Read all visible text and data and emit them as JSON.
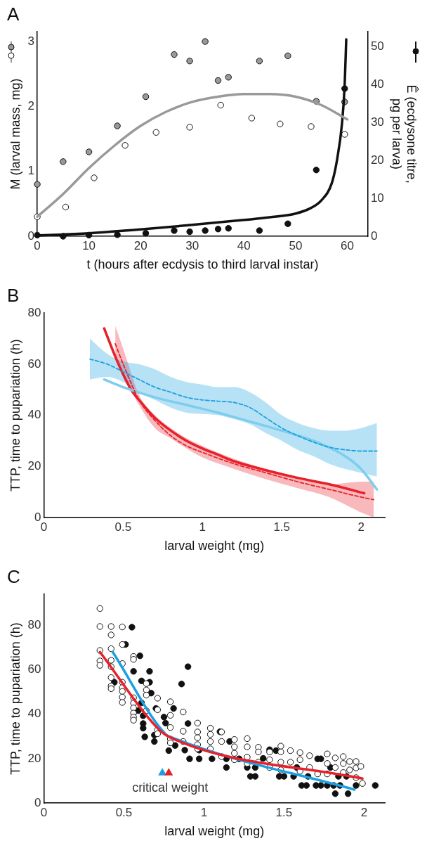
{
  "chart_data": [
    {
      "type": "scatter",
      "title": "A",
      "xlabel": "t (hours after ecdysis to third larval instar)",
      "ylabel": "M (larval mass, mg)",
      "y2label": "Ê (ecdysone titre,\npg per larva)",
      "marker": "circle",
      "xlim": [
        0,
        64
      ],
      "xticks": [
        0,
        10,
        20,
        30,
        40,
        50,
        60
      ],
      "ylim": [
        0,
        3.15
      ],
      "yticks": [
        0,
        1,
        2,
        3
      ],
      "y2lim": [
        0,
        54
      ],
      "y2ticks": [
        0,
        10,
        20,
        30,
        40,
        50
      ],
      "series": [
        {
          "type": "line",
          "color": "#999999",
          "marker": "none",
          "x": [
            0,
            5,
            10,
            15,
            20,
            25,
            30,
            35,
            40,
            45,
            50,
            55,
            60
          ],
          "values": [
            0.3,
            0.65,
            1.05,
            1.4,
            1.7,
            1.92,
            2.07,
            2.15,
            2.19,
            2.19,
            2.15,
            2.02,
            1.8
          ]
        },
        {
          "type": "line",
          "axis": "y2",
          "color": "#111111",
          "marker": "none",
          "x": [
            0,
            10,
            20,
            30,
            40,
            45,
            50,
            53,
            55,
            57,
            58,
            59,
            59.5,
            59.8
          ],
          "values": [
            0.2,
            0.8,
            1.8,
            3,
            4.3,
            5,
            6,
            7.5,
            9.5,
            14,
            20,
            30,
            40,
            52
          ]
        },
        {
          "color": "#999999",
          "x": [
            0,
            5,
            10,
            15.5,
            21,
            26.5,
            29.5,
            32.5,
            35,
            37,
            43,
            48.5,
            54,
            59.5
          ],
          "values": [
            0.8,
            1.15,
            1.3,
            1.7,
            2.15,
            2.8,
            2.7,
            3.0,
            2.4,
            2.45,
            2.7,
            2.78,
            2.08,
            2.07
          ]
        },
        {
          "color": "#ffffff",
          "x": [
            0,
            5.5,
            11,
            17,
            23,
            29.5,
            35.5,
            41.5,
            47,
            53,
            59.5
          ],
          "values": [
            0.3,
            0.45,
            0.9,
            1.4,
            1.6,
            1.68,
            2.02,
            1.82,
            1.73,
            1.69,
            1.57
          ]
        },
        {
          "color": "#111111",
          "axis": "y2",
          "x": [
            0,
            5,
            10,
            15.5,
            21,
            26.5,
            29.5,
            32.5,
            35,
            37,
            43,
            48.5,
            54,
            59.5
          ],
          "values": [
            0.3,
            0,
            0.3,
            0.4,
            0.8,
            1.5,
            1.2,
            1.5,
            1.9,
            2.1,
            1.5,
            3.3,
            17.5,
            39
          ]
        }
      ]
    },
    {
      "type": "line",
      "title": "B",
      "xlabel": "larval weight (mg)",
      "ylabel": "TTP, time to pupariation (h)",
      "marker": "none",
      "xlim": [
        0,
        2.15
      ],
      "xticks": [
        0,
        0.5,
        1,
        1.5,
        2
      ],
      "ylim": [
        0,
        80
      ],
      "yticks": [
        0,
        20,
        40,
        60,
        80
      ],
      "series": [
        {
          "color": "#1ba1e2",
          "line_style": "dashed",
          "x": [
            0.29,
            0.4,
            0.5,
            0.6,
            0.7,
            0.8,
            0.9,
            1.0,
            1.1,
            1.2,
            1.3,
            1.4,
            1.5,
            1.6,
            1.7,
            1.8,
            1.9,
            2.0,
            2.1
          ],
          "values": [
            62,
            60,
            57,
            54,
            51,
            49,
            47,
            46,
            45.5,
            45,
            43,
            39,
            35,
            32,
            29.5,
            27.5,
            26.5,
            26,
            26
          ],
          "upper": [
            70,
            64,
            61,
            60,
            58,
            55,
            53,
            52,
            51,
            51,
            49,
            45,
            40,
            37,
            35,
            34,
            34,
            35,
            37
          ],
          "lower": [
            54,
            55,
            53,
            49,
            46,
            43,
            41,
            40.5,
            40,
            38.5,
            36.5,
            33,
            30,
            26.5,
            24,
            21,
            19,
            17.5,
            16
          ]
        },
        {
          "color": "#e8202a",
          "line_style": "dashed",
          "x": [
            0.45,
            0.5,
            0.6,
            0.7,
            0.8,
            0.9,
            1.0,
            1.2,
            1.4,
            1.6,
            1.8,
            2.0,
            2.08
          ],
          "values": [
            68,
            60,
            46,
            38,
            32,
            28,
            25.5,
            21,
            17.5,
            14,
            11,
            8,
            7
          ],
          "upper": [
            75,
            66,
            48,
            40,
            35,
            31,
            28,
            23,
            19,
            16,
            13,
            14,
            14
          ],
          "lower": [
            62,
            56,
            44,
            35,
            31,
            27,
            23.5,
            19,
            15,
            11.5,
            8,
            2,
            0
          ]
        },
        {
          "color": "#7dcdee",
          "line_style": "solid",
          "x": [
            0.38,
            0.5,
            0.7,
            0.9,
            1.1,
            1.3,
            1.5,
            1.7,
            1.9,
            2.0,
            2.1
          ],
          "values": [
            54,
            51,
            47,
            44,
            41,
            37.5,
            34,
            30,
            24,
            19,
            11
          ]
        },
        {
          "color": "#e8202a",
          "line_style": "solid",
          "x": [
            0.38,
            0.45,
            0.5,
            0.55,
            0.6,
            0.7,
            0.8,
            0.9,
            1.0,
            1.1,
            1.2,
            1.4,
            1.6,
            1.8,
            2.02
          ],
          "values": [
            74,
            63,
            56,
            50,
            46,
            39,
            34,
            30,
            27,
            24.5,
            22,
            18.5,
            15.5,
            13,
            9.5
          ]
        }
      ]
    },
    {
      "type": "scatter",
      "title": "C",
      "xlabel": "larval weight (mg)",
      "ylabel": "TTP, time to pupariation (h)",
      "marker": "circle",
      "xlim": [
        0,
        2.13
      ],
      "xticks": [
        0,
        0.5,
        1,
        1.5,
        2
      ],
      "ylim": [
        0,
        94
      ],
      "yticks": [
        0,
        20,
        40,
        60,
        80
      ],
      "annotations": [
        "critical weight"
      ],
      "series": [
        {
          "color": "#ffffff",
          "x": [
            0.35,
            0.35,
            0.42,
            0.49,
            0.42,
            0.49,
            0.42,
            0.35,
            0.35,
            0.35,
            0.42,
            0.42,
            0.49,
            0.42,
            0.42,
            0.42,
            0.49,
            0.49,
            0.49,
            0.49,
            0.49,
            0.56,
            0.56,
            0.56,
            0.56,
            0.56,
            0.56,
            0.56,
            0.56,
            0.64,
            0.64,
            0.64,
            0.64,
            0.71,
            0.71,
            0.71,
            0.71,
            0.79,
            0.79,
            0.79,
            0.79,
            0.79,
            0.87,
            0.87,
            0.87,
            0.96,
            0.96,
            0.96,
            0.96,
            0.96,
            1.04,
            1.04,
            1.04,
            1.04,
            1.11,
            1.11,
            1.11,
            1.19,
            1.19,
            1.19,
            1.19,
            1.27,
            1.27,
            1.27,
            1.27,
            1.34,
            1.34,
            1.34,
            1.41,
            1.41,
            1.41,
            1.48,
            1.48,
            1.48,
            1.48,
            1.54,
            1.54,
            1.6,
            1.6,
            1.6,
            1.66,
            1.66,
            1.71,
            1.77,
            1.77,
            1.77,
            1.82,
            1.82,
            1.87,
            1.87,
            1.87,
            1.91,
            1.91,
            1.95,
            1.95,
            1.95,
            1.98,
            1.99
          ],
          "values": [
            87.6,
            79.5,
            79.5,
            79.3,
            75.7,
            71.4,
            69.5,
            68.7,
            64,
            62,
            64.3,
            61.4,
            62.8,
            56.5,
            52.7,
            51.5,
            54.4,
            51.9,
            50.3,
            47.7,
            45.3,
            66,
            64.7,
            47.4,
            45,
            42.8,
            40.5,
            38.7,
            37.3,
            53.8,
            50.9,
            48.6,
            41.6,
            47.2,
            42,
            33,
            31.2,
            45.6,
            39.5,
            34,
            28.8,
            27.1,
            41,
            32.3,
            27.7,
            36,
            32,
            29.4,
            26.3,
            24.4,
            33.7,
            30.9,
            27.7,
            24.4,
            32,
            27.7,
            20.9,
            28.6,
            25.3,
            22.4,
            19.5,
            29,
            25.3,
            20.7,
            17.8,
            25.1,
            23,
            18.4,
            23,
            19.5,
            16,
            25.6,
            23,
            18.4,
            14.9,
            23.6,
            18.4,
            22.7,
            19.5,
            14.3,
            21.3,
            16,
            13.1,
            22.1,
            17.8,
            13.1,
            20.3,
            16,
            20.9,
            17.8,
            13.7,
            18.7,
            14.9,
            18.7,
            15.8,
            11.4,
            16.5,
            8.8
          ]
        },
        {
          "color": "#111111",
          "x": [
            0.55,
            0.51,
            0.6,
            0.44,
            0.56,
            0.66,
            0.61,
            0.66,
            0.67,
            0.61,
            0.59,
            0.62,
            0.62,
            0.62,
            0.63,
            0.69,
            0.69,
            0.7,
            0.75,
            0.76,
            0.81,
            0.78,
            0.82,
            0.86,
            0.9,
            0.9,
            0.91,
            0.88,
            0.97,
            0.97,
            1.05,
            1.1,
            1.14,
            1.16,
            1.14,
            1.22,
            1.27,
            1.29,
            1.32,
            1.32,
            1.37,
            1.41,
            1.45,
            1.47,
            1.5,
            1.56,
            1.58,
            1.61,
            1.64,
            1.65,
            1.7,
            1.73,
            1.71,
            1.73,
            1.77,
            1.81,
            1.82,
            1.84,
            1.85,
            1.9,
            1.95,
            2.07,
            1.89,
            1.79
          ],
          "values": [
            79.2,
            71.4,
            66.3,
            54.4,
            59.3,
            59.3,
            55,
            54.4,
            49.5,
            45.1,
            41.6,
            39.3,
            35.8,
            33.7,
            29.8,
            27.7,
            30.6,
            42.6,
            38.7,
            36,
            42.6,
            23.6,
            25.9,
            53.6,
            61.4,
            35.8,
            19.9,
            23.8,
            23.8,
            19.9,
            19.9,
            32.1,
            16,
            27.7,
            19.9,
            19.9,
            16,
            12,
            12,
            16,
            20.1,
            24,
            23.6,
            12,
            12,
            12,
            16,
            7.9,
            7.9,
            12,
            7.9,
            7.9,
            19.9,
            19.9,
            7.9,
            7.9,
            4.2,
            12,
            7.9,
            4.2,
            7.9,
            7.9,
            12,
            16
          ]
        },
        {
          "type": "line",
          "color": "#e8202a",
          "marker": "none",
          "x": [
            0.35,
            0.72,
            0.79,
            1.99
          ],
          "values": [
            68,
            33,
            29.5,
            11
          ]
        },
        {
          "type": "line",
          "color": "#1ba1e2",
          "marker": "none",
          "x": [
            0.43,
            0.76,
            0.8,
            1.94
          ],
          "values": [
            68,
            31,
            29.5,
            6
          ]
        },
        {
          "marker": "triangle",
          "x": [
            0.74,
            0.78
          ],
          "values": [
            13.5,
            13.5
          ],
          "colors": [
            "#1ba1e2",
            "#e8202a"
          ]
        }
      ]
    }
  ]
}
